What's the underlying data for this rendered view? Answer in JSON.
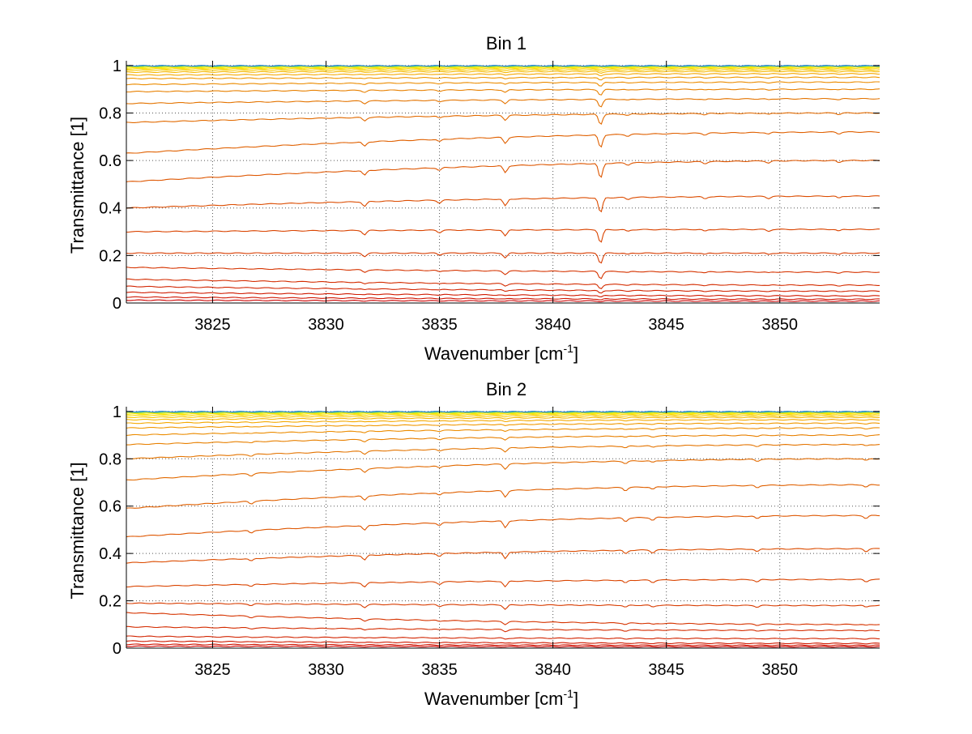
{
  "chart_data": [
    {
      "type": "line",
      "title": "Bin 1",
      "xlabel_base": "Wavenumber [cm",
      "xlabel_sup": "-1",
      "xlabel_tail": "]",
      "ylabel": "Transmittance [1]",
      "xlim": [
        3821.2,
        3854.4
      ],
      "ylim": [
        0,
        1.02
      ],
      "x_ticks": [
        3825,
        3830,
        3835,
        3840,
        3845,
        3850
      ],
      "y_ticks": [
        0,
        0.2,
        0.4,
        0.6,
        0.8,
        1
      ],
      "y_tick_labels": [
        "0",
        "0.2",
        "0.4",
        "0.6",
        "0.8",
        "1"
      ],
      "grid": true,
      "absorption_lines": [
        {
          "x": 3831.7,
          "depth": 0.7
        },
        {
          "x": 3835.0,
          "depth": 0.4
        },
        {
          "x": 3837.9,
          "depth": 1.0
        },
        {
          "x": 3842.1,
          "depth": 2.2
        },
        {
          "x": 3843.3,
          "depth": 0.3
        },
        {
          "x": 3846.7,
          "depth": 0.3
        },
        {
          "x": 3849.5,
          "depth": 0.3
        },
        {
          "x": 3852.6,
          "depth": 0.3
        }
      ],
      "series": [
        {
          "start": 0.012,
          "end": 0.008,
          "color": "#cc0000"
        },
        {
          "start": 0.025,
          "end": 0.016,
          "color": "#cf1400"
        },
        {
          "start": 0.045,
          "end": 0.03,
          "color": "#d01a00"
        },
        {
          "start": 0.07,
          "end": 0.05,
          "color": "#d22400"
        },
        {
          "start": 0.1,
          "end": 0.075,
          "color": "#d42c00"
        },
        {
          "start": 0.15,
          "end": 0.13,
          "color": "#d63400"
        },
        {
          "start": 0.21,
          "end": 0.21,
          "color": "#d83c00"
        },
        {
          "start": 0.3,
          "end": 0.31,
          "color": "#da4400"
        },
        {
          "start": 0.4,
          "end": 0.45,
          "color": "#dc4c00"
        },
        {
          "start": 0.51,
          "end": 0.6,
          "color": "#de5600"
        },
        {
          "start": 0.63,
          "end": 0.72,
          "color": "#e06000"
        },
        {
          "start": 0.76,
          "end": 0.8,
          "color": "#e26a00"
        },
        {
          "start": 0.84,
          "end": 0.86,
          "color": "#e47400"
        },
        {
          "start": 0.89,
          "end": 0.9,
          "color": "#e88000"
        },
        {
          "start": 0.92,
          "end": 0.93,
          "color": "#ec8c00"
        },
        {
          "start": 0.945,
          "end": 0.95,
          "color": "#f09800"
        },
        {
          "start": 0.96,
          "end": 0.965,
          "color": "#f4a800"
        },
        {
          "start": 0.972,
          "end": 0.975,
          "color": "#f6b800"
        },
        {
          "start": 0.98,
          "end": 0.982,
          "color": "#f8c800"
        },
        {
          "start": 0.986,
          "end": 0.988,
          "color": "#fad800"
        },
        {
          "start": 0.99,
          "end": 0.992,
          "color": "#fce600"
        },
        {
          "start": 0.994,
          "end": 0.995,
          "color": "#e6ee10"
        },
        {
          "start": 0.997,
          "end": 0.997,
          "color": "#a8e040"
        },
        {
          "start": 0.998,
          "end": 0.998,
          "color": "#40c0a0"
        },
        {
          "start": 0.999,
          "end": 0.999,
          "color": "#2080d0"
        }
      ]
    },
    {
      "type": "line",
      "title": "Bin 2",
      "xlabel_base": "Wavenumber [cm",
      "xlabel_sup": "-1",
      "xlabel_tail": "]",
      "ylabel": "Transmittance [1]",
      "xlim": [
        3821.2,
        3854.4
      ],
      "ylim": [
        0,
        1.02
      ],
      "x_ticks": [
        3825,
        3830,
        3835,
        3840,
        3845,
        3850
      ],
      "y_ticks": [
        0,
        0.2,
        0.4,
        0.6,
        0.8,
        1
      ],
      "y_tick_labels": [
        "0",
        "0.2",
        "0.4",
        "0.6",
        "0.8",
        "1"
      ],
      "grid": true,
      "absorption_lines": [
        {
          "x": 3826.7,
          "depth": 0.4
        },
        {
          "x": 3831.7,
          "depth": 0.7
        },
        {
          "x": 3835.0,
          "depth": 0.4
        },
        {
          "x": 3837.9,
          "depth": 1.0
        },
        {
          "x": 3843.2,
          "depth": 0.5
        },
        {
          "x": 3844.4,
          "depth": 0.4
        },
        {
          "x": 3849.0,
          "depth": 0.4
        },
        {
          "x": 3853.8,
          "depth": 0.4
        }
      ],
      "series": [
        {
          "start": 0.008,
          "end": 0.006,
          "color": "#cc0000"
        },
        {
          "start": 0.016,
          "end": 0.012,
          "color": "#cf1400"
        },
        {
          "start": 0.03,
          "end": 0.02,
          "color": "#d01a00"
        },
        {
          "start": 0.05,
          "end": 0.04,
          "color": "#d22400"
        },
        {
          "start": 0.09,
          "end": 0.075,
          "color": "#d42c00"
        },
        {
          "start": 0.15,
          "end": 0.1,
          "color": "#d63400"
        },
        {
          "start": 0.19,
          "end": 0.18,
          "color": "#d83c00"
        },
        {
          "start": 0.26,
          "end": 0.29,
          "color": "#da4400"
        },
        {
          "start": 0.36,
          "end": 0.42,
          "color": "#dc4c00"
        },
        {
          "start": 0.47,
          "end": 0.56,
          "color": "#de5600"
        },
        {
          "start": 0.59,
          "end": 0.69,
          "color": "#e06000"
        },
        {
          "start": 0.71,
          "end": 0.8,
          "color": "#e26a00"
        },
        {
          "start": 0.8,
          "end": 0.86,
          "color": "#e47400"
        },
        {
          "start": 0.86,
          "end": 0.9,
          "color": "#e88000"
        },
        {
          "start": 0.9,
          "end": 0.93,
          "color": "#ec8c00"
        },
        {
          "start": 0.93,
          "end": 0.95,
          "color": "#f09800"
        },
        {
          "start": 0.95,
          "end": 0.965,
          "color": "#f4a800"
        },
        {
          "start": 0.965,
          "end": 0.975,
          "color": "#f6b800"
        },
        {
          "start": 0.975,
          "end": 0.982,
          "color": "#f8c800"
        },
        {
          "start": 0.983,
          "end": 0.988,
          "color": "#fad800"
        },
        {
          "start": 0.989,
          "end": 0.992,
          "color": "#fce600"
        },
        {
          "start": 0.993,
          "end": 0.995,
          "color": "#e6ee10"
        },
        {
          "start": 0.996,
          "end": 0.997,
          "color": "#a8e040"
        },
        {
          "start": 0.998,
          "end": 0.998,
          "color": "#40c0a0"
        },
        {
          "start": 0.999,
          "end": 0.999,
          "color": "#2080d0"
        }
      ]
    }
  ]
}
